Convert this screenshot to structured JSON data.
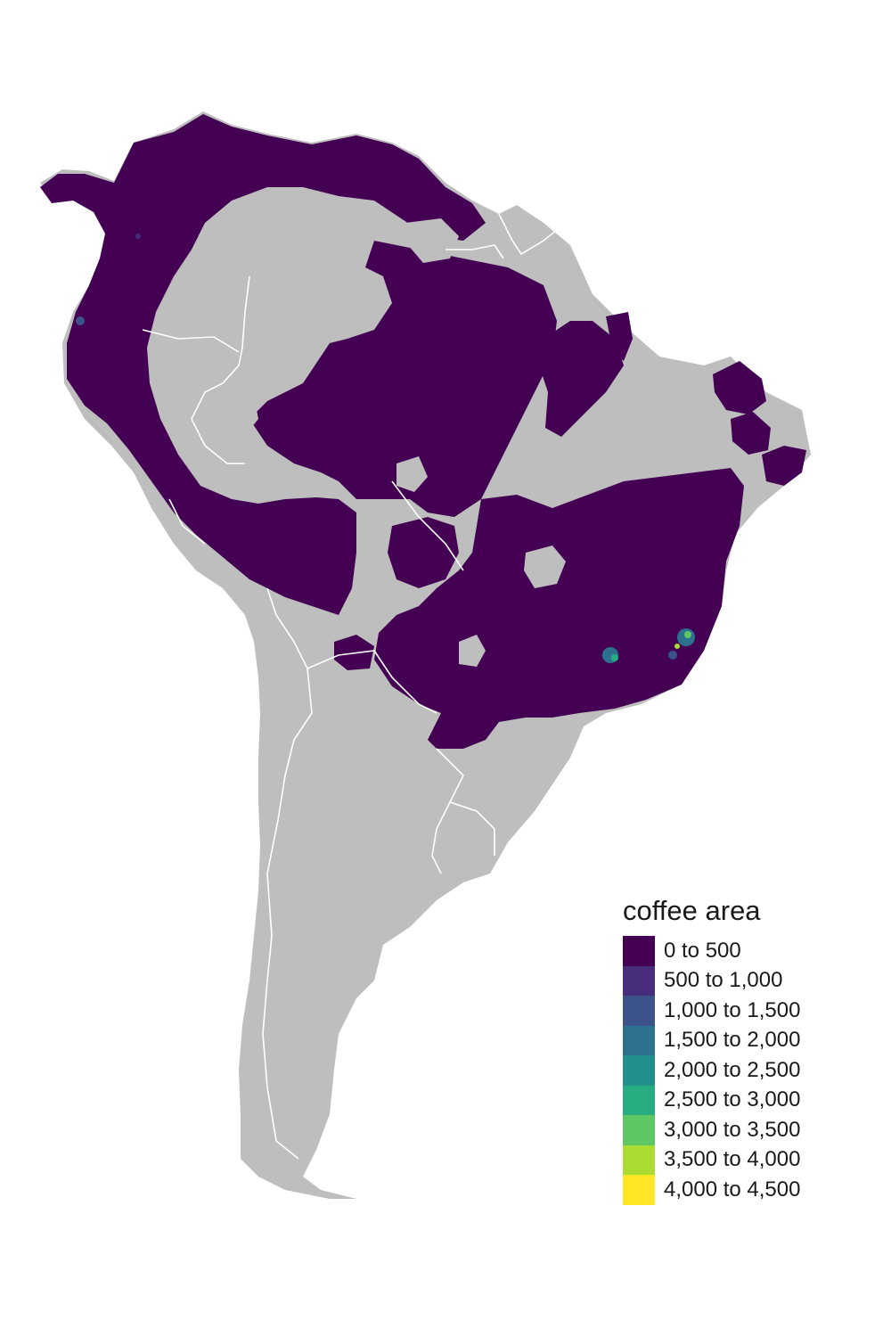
{
  "legend": {
    "title": "coffee area",
    "classes": [
      {
        "label": "0 to 500",
        "color": "#440154"
      },
      {
        "label": "500 to 1,000",
        "color": "#472D7B"
      },
      {
        "label": "1,000 to 1,500",
        "color": "#3B528B"
      },
      {
        "label": "1,500 to 2,000",
        "color": "#2C728E"
      },
      {
        "label": "2,000 to 2,500",
        "color": "#21908C"
      },
      {
        "label": "2,500 to 3,000",
        "color": "#27AD81"
      },
      {
        "label": "3,000 to 3,500",
        "color": "#5DC863"
      },
      {
        "label": "3,500 to 4,000",
        "color": "#AADC32"
      },
      {
        "label": "4,000 to 4,500",
        "color": "#FDE725"
      }
    ]
  },
  "colors": {
    "land": "#BEBEBE",
    "borders": "#FFFFFF",
    "background": "#FFFFFF"
  }
}
